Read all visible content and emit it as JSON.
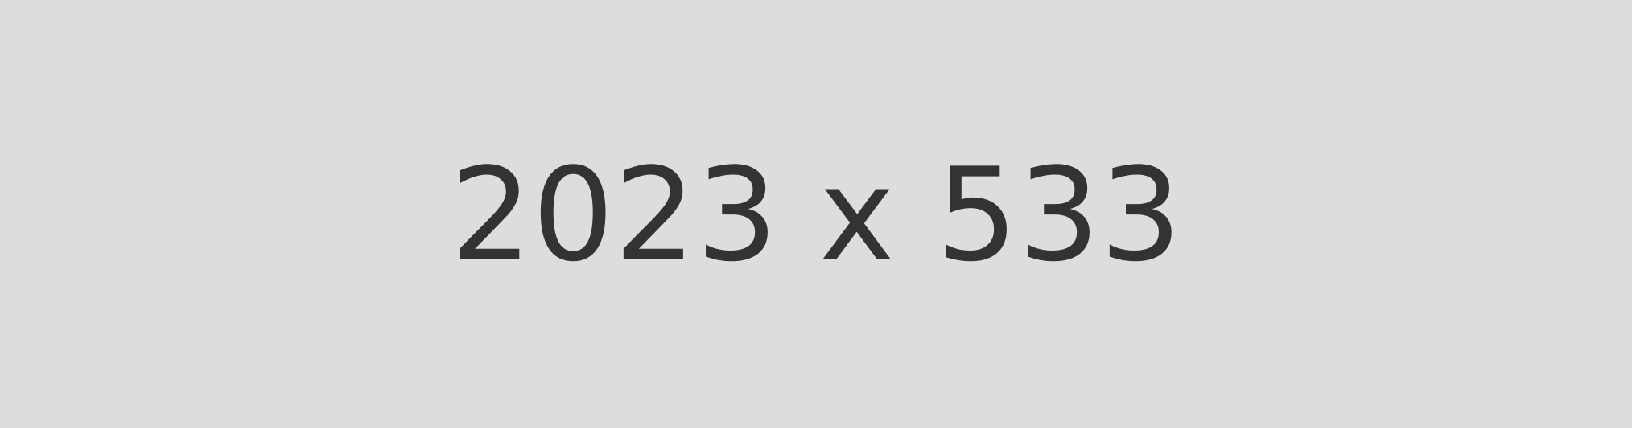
{
  "placeholder": {
    "label": "2023 x 533",
    "background_color": "#dddddd",
    "text_color": "#333333"
  }
}
